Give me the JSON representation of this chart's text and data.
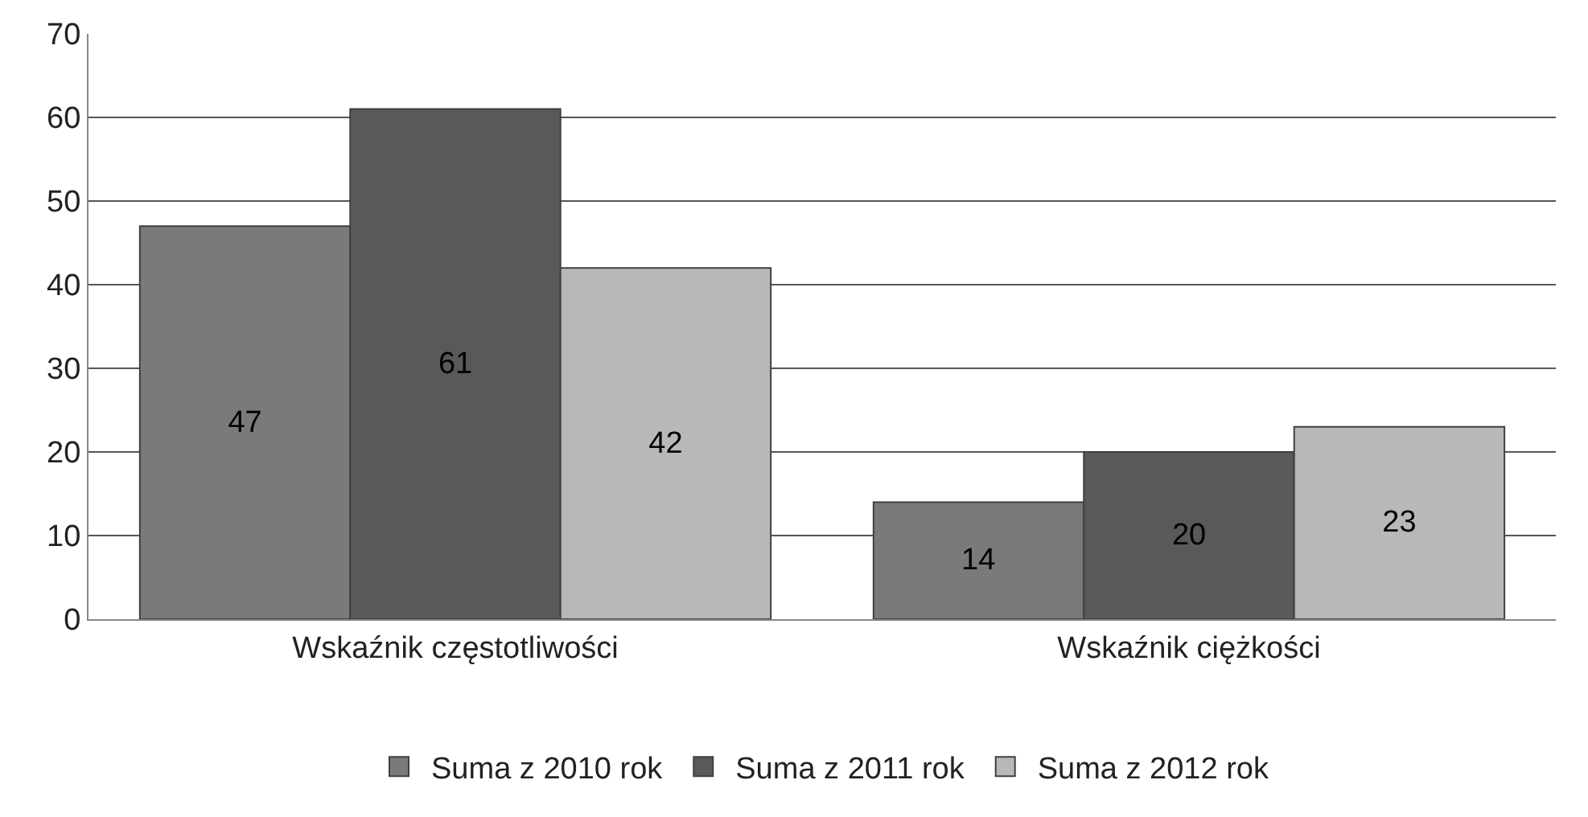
{
  "chart_data": {
    "type": "bar",
    "categories": [
      "Wskaźnik częstotliwości",
      "Wskaźnik ciężkości"
    ],
    "series": [
      {
        "name": "Suma z 2010 rok",
        "color": "#7a7a7a",
        "values": [
          47,
          14
        ]
      },
      {
        "name": "Suma z 2011 rok",
        "color": "#595959",
        "values": [
          61,
          20
        ]
      },
      {
        "name": "Suma z 2012 rok",
        "color": "#b8b8b8",
        "values": [
          42,
          23
        ]
      }
    ],
    "ylim": [
      0,
      70
    ],
    "yticks": [
      0,
      10,
      20,
      30,
      40,
      50,
      60,
      70
    ],
    "grid": "y",
    "legend": "bottom",
    "data_labels": true
  }
}
